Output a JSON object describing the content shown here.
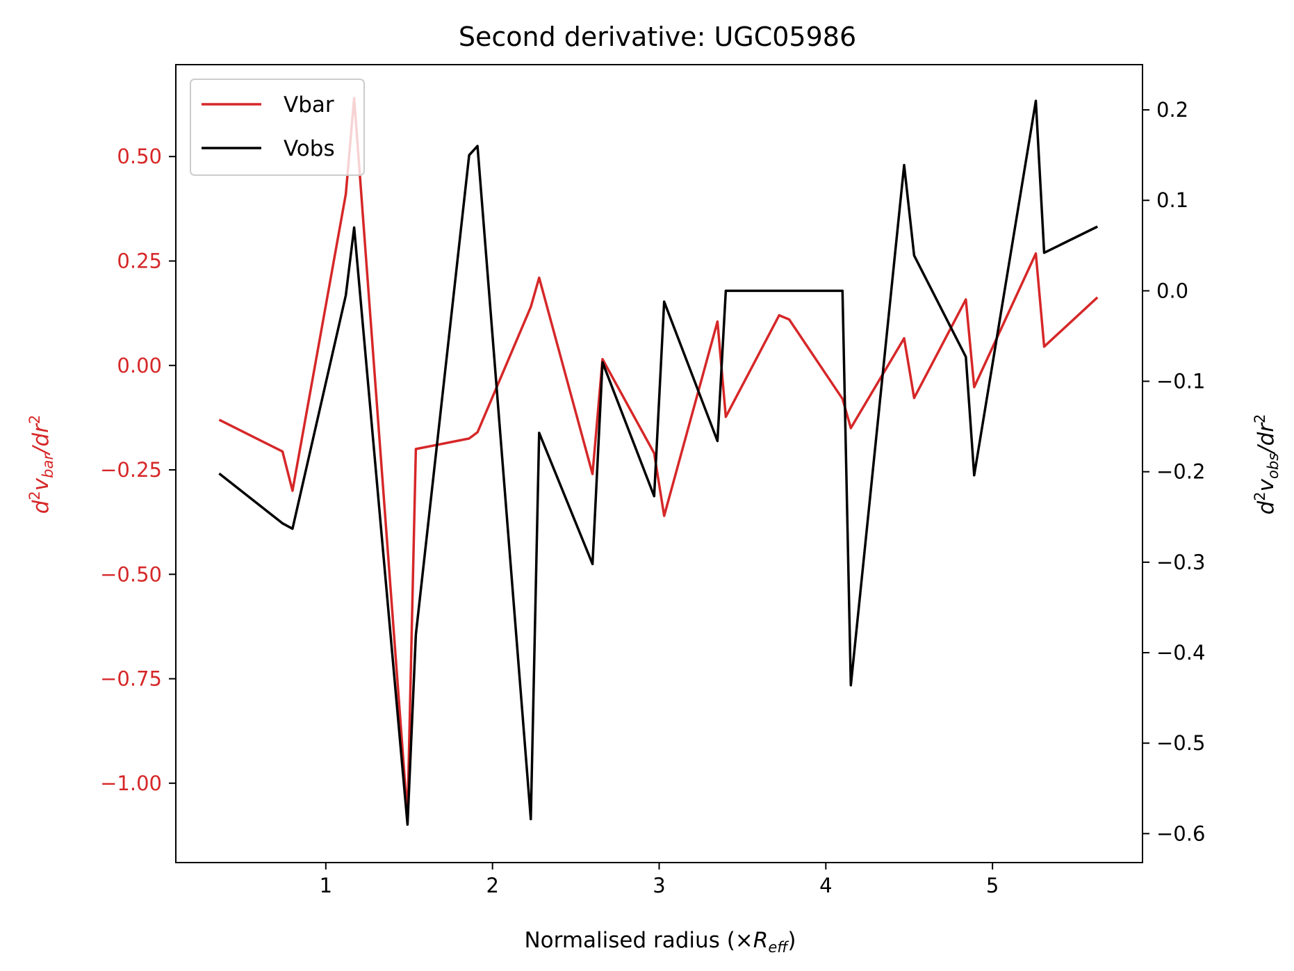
{
  "chart_data": {
    "type": "line",
    "title": "Second derivative: UGC05986",
    "xlabel": {
      "prefix": "Normalised radius (×",
      "symbol": "R",
      "sub": "eff",
      "suffix": ")"
    },
    "ylabel_left": {
      "pre": "d",
      "sup1": "2",
      "v": "v",
      "sub": "bar",
      "mid": "/dr",
      "sup2": "2"
    },
    "ylabel_right": {
      "pre": "d",
      "sup1": "2",
      "v": "v",
      "sub": "obs",
      "mid": "/dr",
      "sup2": "2"
    },
    "xlim": [
      0.1,
      5.9
    ],
    "ylim_left": [
      -1.19,
      0.72
    ],
    "ylim_right": [
      -0.632,
      0.25
    ],
    "x_ticks": [
      1,
      2,
      3,
      4,
      5
    ],
    "y_ticks_left": [
      {
        "value": 0.5,
        "label": "0.50"
      },
      {
        "value": 0.25,
        "label": "0.25"
      },
      {
        "value": 0.0,
        "label": "0.00"
      },
      {
        "value": -0.25,
        "label": "−0.25"
      },
      {
        "value": -0.5,
        "label": "−0.50"
      },
      {
        "value": -0.75,
        "label": "−0.75"
      },
      {
        "value": -1.0,
        "label": "−1.00"
      }
    ],
    "y_ticks_right": [
      {
        "value": 0.2,
        "label": "0.2"
      },
      {
        "value": 0.1,
        "label": "0.1"
      },
      {
        "value": 0.0,
        "label": "0.0"
      },
      {
        "value": -0.1,
        "label": "−0.1"
      },
      {
        "value": -0.2,
        "label": "−0.2"
      },
      {
        "value": -0.3,
        "label": "−0.3"
      },
      {
        "value": -0.4,
        "label": "−0.4"
      },
      {
        "value": -0.5,
        "label": "−0.5"
      },
      {
        "value": -0.6,
        "label": "−0.6"
      }
    ],
    "legend_position": "upper-left",
    "grid": false,
    "series": [
      {
        "name": "Vbar",
        "axis": "left",
        "color": "#d62728",
        "points": [
          [
            0.36,
            -0.13
          ],
          [
            0.74,
            -0.206
          ],
          [
            0.8,
            -0.3
          ],
          [
            1.12,
            0.41
          ],
          [
            1.17,
            0.64
          ],
          [
            1.49,
            -1.08
          ],
          [
            1.54,
            -0.2
          ],
          [
            1.86,
            -0.175
          ],
          [
            1.91,
            -0.16
          ],
          [
            2.23,
            0.14
          ],
          [
            2.28,
            0.21
          ],
          [
            2.6,
            -0.26
          ],
          [
            2.66,
            0.015
          ],
          [
            2.97,
            -0.21
          ],
          [
            3.03,
            -0.36
          ],
          [
            3.35,
            0.105
          ],
          [
            3.4,
            -0.123
          ],
          [
            3.72,
            0.12
          ],
          [
            3.78,
            0.11
          ],
          [
            4.1,
            -0.08
          ],
          [
            4.15,
            -0.15
          ],
          [
            4.47,
            0.065
          ],
          [
            4.53,
            -0.078
          ],
          [
            4.84,
            0.158
          ],
          [
            4.89,
            -0.052
          ],
          [
            5.26,
            0.268
          ],
          [
            5.31,
            0.045
          ],
          [
            5.63,
            0.163
          ]
        ]
      },
      {
        "name": "Vobs",
        "axis": "right",
        "color": "#000000",
        "points": [
          [
            0.36,
            -0.202
          ],
          [
            0.74,
            -0.257
          ],
          [
            0.8,
            -0.263
          ],
          [
            1.12,
            -0.005
          ],
          [
            1.17,
            0.07
          ],
          [
            1.49,
            -0.59
          ],
          [
            1.54,
            -0.38
          ],
          [
            1.86,
            0.15
          ],
          [
            1.91,
            0.16
          ],
          [
            2.23,
            -0.584
          ],
          [
            2.28,
            -0.157
          ],
          [
            2.6,
            -0.302
          ],
          [
            2.66,
            -0.079
          ],
          [
            2.97,
            -0.227
          ],
          [
            3.03,
            -0.012
          ],
          [
            3.35,
            -0.166
          ],
          [
            3.4,
            0.0
          ],
          [
            3.72,
            0.0
          ],
          [
            3.78,
            0.0
          ],
          [
            4.1,
            0.0
          ],
          [
            4.15,
            -0.436
          ],
          [
            4.47,
            0.139
          ],
          [
            4.53,
            0.039
          ],
          [
            4.84,
            -0.073
          ],
          [
            4.89,
            -0.204
          ],
          [
            5.26,
            0.21
          ],
          [
            5.31,
            0.042
          ],
          [
            5.63,
            0.071
          ]
        ]
      }
    ]
  }
}
